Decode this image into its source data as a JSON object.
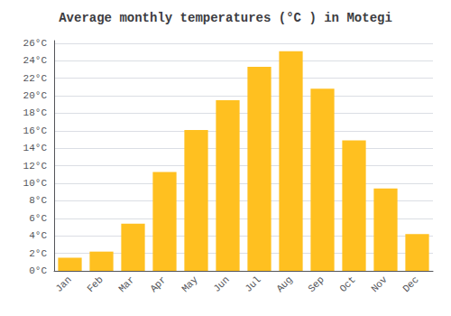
{
  "chart_data": {
    "type": "bar",
    "title": "Average monthly temperatures (°C ) in Motegi",
    "categories": [
      "Jan",
      "Feb",
      "Mar",
      "Apr",
      "May",
      "Jun",
      "Jul",
      "Aug",
      "Sep",
      "Oct",
      "Nov",
      "Dec"
    ],
    "values": [
      1.5,
      2.2,
      5.4,
      11.3,
      16.1,
      19.5,
      23.3,
      25.1,
      20.8,
      14.9,
      9.4,
      4.2
    ],
    "color": "#FFC020",
    "ylim": [
      0,
      26.3
    ],
    "yticks": [
      {
        "value": 0,
        "label": "0°C"
      },
      {
        "value": 2,
        "label": "2°C"
      },
      {
        "value": 4,
        "label": "4°C"
      },
      {
        "value": 6,
        "label": "6°C"
      },
      {
        "value": 8,
        "label": "8°C"
      },
      {
        "value": 10,
        "label": "10°C"
      },
      {
        "value": 12,
        "label": "12°C"
      },
      {
        "value": 14,
        "label": "14°C"
      },
      {
        "value": 16,
        "label": "16°C"
      },
      {
        "value": 18,
        "label": "18°C"
      },
      {
        "value": 20,
        "label": "20°C"
      },
      {
        "value": 22,
        "label": "22°C"
      },
      {
        "value": 24,
        "label": "24°C"
      },
      {
        "value": 26,
        "label": "26°C"
      }
    ],
    "grid": true
  }
}
